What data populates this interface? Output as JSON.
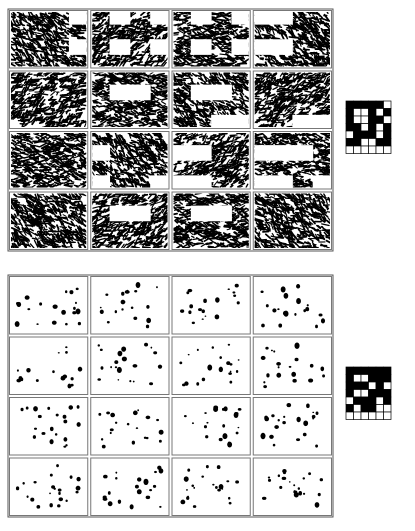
{
  "figure": {
    "panels": [
      {
        "name": "dense-texture-array",
        "rows": 4,
        "cols": 4,
        "pattern": "dense",
        "ink": "#000000",
        "paper": "#ffffff",
        "holes": [
          [
            0,
            0,
            0,
            1,
            0,
            1,
            0,
            1,
            0,
            1,
            0,
            1,
            1,
            1,
            0,
            0
          ],
          [
            0,
            0,
            0,
            0,
            0,
            0,
            0,
            0,
            0,
            0,
            0,
            0,
            0,
            0,
            0,
            0
          ],
          [
            0,
            0,
            0,
            1,
            0,
            1,
            0,
            1,
            0,
            1,
            0,
            1,
            1,
            1,
            0,
            0
          ],
          [
            0,
            0,
            0,
            0,
            0,
            0,
            0,
            0,
            0,
            0,
            0,
            0,
            0,
            0,
            0,
            0
          ],
          [
            0,
            0,
            0,
            0,
            0,
            0,
            0,
            0,
            0,
            0,
            0,
            0,
            0,
            0,
            0,
            0
          ],
          [
            0,
            0,
            0,
            0,
            0,
            1,
            1,
            0,
            0,
            1,
            1,
            0,
            0,
            0,
            0,
            0
          ],
          [
            0,
            0,
            0,
            0,
            0,
            0,
            0,
            0,
            0,
            0,
            0,
            0,
            0,
            0,
            0,
            0
          ],
          [
            0,
            0,
            0,
            0,
            0,
            0,
            0,
            0,
            0,
            0,
            1,
            1,
            0,
            0,
            1,
            1
          ],
          [
            0,
            0,
            0,
            0,
            0,
            0,
            0,
            0,
            0,
            0,
            0,
            0,
            0,
            0,
            0,
            0
          ],
          [
            0,
            0,
            0,
            0,
            1,
            0,
            0,
            0,
            1,
            1,
            0,
            0,
            1,
            1,
            1,
            0
          ],
          [
            0,
            0,
            0,
            0,
            0,
            0,
            0,
            0,
            0,
            0,
            0,
            0,
            0,
            0,
            0,
            0
          ],
          [
            0,
            0,
            0,
            0,
            1,
            0,
            0,
            1,
            1,
            1,
            0,
            0,
            1,
            1,
            0,
            1
          ],
          [
            0,
            0,
            0,
            0,
            0,
            0,
            0,
            0,
            0,
            0,
            0,
            0,
            0,
            0,
            0,
            0
          ],
          [
            0,
            0,
            0,
            0,
            0,
            1,
            1,
            0,
            0,
            1,
            1,
            0,
            0,
            0,
            0,
            0
          ],
          [
            0,
            0,
            0,
            0,
            0,
            0,
            0,
            0,
            0,
            0,
            0,
            0,
            0,
            0,
            0,
            0
          ],
          [
            0,
            0,
            0,
            0,
            0,
            0,
            0,
            0,
            0,
            0,
            0,
            0,
            0,
            0,
            0,
            0
          ]
        ]
      },
      {
        "name": "sparse-texture-array",
        "rows": 4,
        "cols": 4,
        "pattern": "sparse",
        "ink": "#000000",
        "paper": "#ffffff"
      }
    ],
    "keys": [
      {
        "name": "dense-key-grid",
        "cols": 6,
        "rows": 7,
        "cells": [
          1,
          1,
          1,
          1,
          1,
          0,
          1,
          0,
          0,
          1,
          0,
          1,
          1,
          0,
          0,
          1,
          1,
          0,
          1,
          1,
          0,
          1,
          0,
          1,
          0,
          1,
          1,
          1,
          0,
          1,
          1,
          1,
          0,
          0,
          1,
          1,
          0,
          0,
          0,
          0,
          0,
          0
        ]
      },
      {
        "name": "sparse-key-grid",
        "cols": 6,
        "rows": 7,
        "cells": [
          1,
          1,
          1,
          1,
          1,
          1,
          1,
          0,
          0,
          1,
          1,
          1,
          1,
          1,
          1,
          0,
          1,
          0,
          1,
          0,
          0,
          1,
          1,
          1,
          0,
          1,
          1,
          1,
          0,
          1,
          1,
          0,
          1,
          1,
          0,
          0,
          0,
          0,
          0,
          0,
          0,
          0
        ]
      }
    ]
  }
}
